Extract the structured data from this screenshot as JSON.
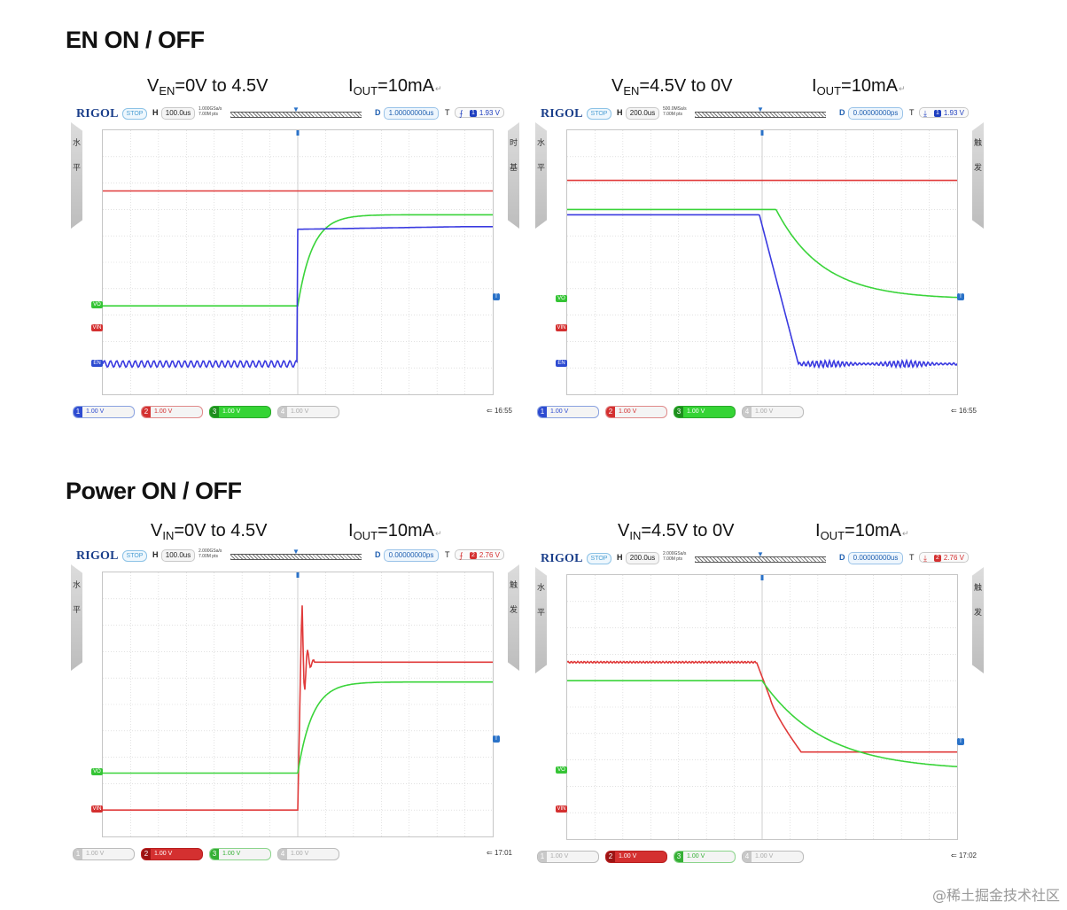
{
  "sections": [
    {
      "title": "EN ON / OFF"
    },
    {
      "title": "Power ON / OFF"
    }
  ],
  "panels": [
    {
      "caption_v": {
        "main": "V",
        "sub": "EN",
        "rest": "=0V to 4.5V"
      },
      "caption_i": {
        "main": "I",
        "sub": "OUT",
        "rest": "=10mA"
      },
      "brand": "RIGOL",
      "run_state": "STOP",
      "h_label": "H",
      "h_scale": "100.0us",
      "sample_rate": "1.000GSa/s",
      "mem_depth": "7.00M pts",
      "d_label": "D",
      "delay": "1.00000000us",
      "t_label": "T",
      "trig_edge": "rising",
      "trig_channel": "1",
      "trig_level": "1.93 V",
      "side_left": [
        "水",
        "平"
      ],
      "side_right": [
        "时",
        "基"
      ],
      "channels": [
        {
          "num": "1",
          "scale": "1.00 V",
          "state": "on"
        },
        {
          "num": "2",
          "scale": "1.00 V",
          "state": "on"
        },
        {
          "num": "3",
          "scale": "1.00 V",
          "state": "active"
        },
        {
          "num": "4",
          "scale": "1.00 V",
          "state": "off"
        }
      ],
      "clock": "16:55",
      "markers": [
        {
          "label": "VO",
          "color": "#35c435"
        },
        {
          "label": "VIN",
          "color": "#d43030"
        },
        {
          "label": "EN",
          "color": "#2d4bd1"
        }
      ],
      "chart_data": {
        "type": "line",
        "x_divisions": 14,
        "y_divisions": 10,
        "transition_at_div": 7,
        "series": [
          {
            "color": "#e03a3a",
            "shape": "flat",
            "level_div": 7.7
          },
          {
            "color": "#3ad43a",
            "shape": "rise",
            "from_div": 3.35,
            "to_div": 6.8
          },
          {
            "color": "#3a3ae0",
            "shape": "en_rise",
            "from_div": 1.15,
            "to_div": 6.35
          }
        ]
      }
    },
    {
      "caption_v": {
        "main": "V",
        "sub": "EN",
        "rest": "=4.5V to 0V"
      },
      "caption_i": {
        "main": "I",
        "sub": "OUT",
        "rest": "=10mA"
      },
      "brand": "RIGOL",
      "run_state": "STOP",
      "h_label": "H",
      "h_scale": "200.0us",
      "sample_rate": "500.0MSa/s",
      "mem_depth": "7.00M pts",
      "d_label": "D",
      "delay": "0.00000000ps",
      "t_label": "T",
      "trig_edge": "falling",
      "trig_channel": "1",
      "trig_level": "1.93 V",
      "side_left": [
        "水",
        "平"
      ],
      "side_right": [
        "触",
        "发"
      ],
      "channels": [
        {
          "num": "1",
          "scale": "1.00 V",
          "state": "on"
        },
        {
          "num": "2",
          "scale": "1.00 V",
          "state": "on"
        },
        {
          "num": "3",
          "scale": "1.00 V",
          "state": "active"
        },
        {
          "num": "4",
          "scale": "1.00 V",
          "state": "off"
        }
      ],
      "clock": "16:55",
      "markers": [
        {
          "label": "VO",
          "color": "#35c435"
        },
        {
          "label": "VIN",
          "color": "#d43030"
        },
        {
          "label": "EN",
          "color": "#2d4bd1"
        }
      ],
      "chart_data": {
        "type": "line",
        "x_divisions": 14,
        "y_divisions": 10,
        "transition_at_div": 7,
        "series": [
          {
            "color": "#e03a3a",
            "shape": "flat",
            "level_div": 8.1
          },
          {
            "color": "#3ad43a",
            "shape": "decay",
            "from_div": 7.0,
            "to_div": 3.6
          },
          {
            "color": "#3a3ae0",
            "shape": "en_fall",
            "from_div": 6.8,
            "to_div": 1.15
          }
        ]
      }
    },
    {
      "caption_v": {
        "main": "V",
        "sub": "IN",
        "rest": "=0V to 4.5V"
      },
      "caption_i": {
        "main": "I",
        "sub": "OUT",
        "rest": "=10mA"
      },
      "brand": "RIGOL",
      "run_state": "STOP",
      "h_label": "H",
      "h_scale": "100.0us",
      "sample_rate": "2.000GSa/s",
      "mem_depth": "7.00M pts",
      "d_label": "D",
      "delay": "0.00000000ps",
      "t_label": "T",
      "trig_edge": "rising",
      "trig_channel": "2",
      "trig_level": "2.76 V",
      "side_left": [
        "水",
        "平"
      ],
      "side_right": [
        "触",
        "发"
      ],
      "channels": [
        {
          "num": "1",
          "scale": "1.00 V",
          "state": "off"
        },
        {
          "num": "2",
          "scale": "1.00 V",
          "state": "active"
        },
        {
          "num": "3",
          "scale": "1.00 V",
          "state": "on"
        },
        {
          "num": "4",
          "scale": "1.00 V",
          "state": "off"
        }
      ],
      "clock": "17:01",
      "markers": [
        {
          "label": "VO",
          "color": "#35c435"
        },
        {
          "label": "VIN",
          "color": "#d43030"
        }
      ],
      "chart_data": {
        "type": "line",
        "x_divisions": 14,
        "y_divisions": 10,
        "transition_at_div": 7,
        "series": [
          {
            "color": "#e03a3a",
            "shape": "vin_rise",
            "from_div": 1.0,
            "to_div": 6.6
          },
          {
            "color": "#3ad43a",
            "shape": "rise",
            "from_div": 2.4,
            "to_div": 5.85
          }
        ]
      }
    },
    {
      "caption_v": {
        "main": "V",
        "sub": "IN",
        "rest": "=4.5V to 0V"
      },
      "caption_i": {
        "main": "I",
        "sub": "OUT",
        "rest": "=10mA"
      },
      "brand": "RIGOL",
      "run_state": "STOP",
      "h_label": "H",
      "h_scale": "200.0us",
      "sample_rate": "2.000GSa/s",
      "mem_depth": "7.00M pts",
      "d_label": "D",
      "delay": "0.00000000us",
      "t_label": "T",
      "trig_edge": "falling",
      "trig_channel": "2",
      "trig_level": "2.76 V",
      "side_left": [
        "水",
        "平"
      ],
      "side_right": [
        "触",
        "发"
      ],
      "channels": [
        {
          "num": "1",
          "scale": "1.00 V",
          "state": "off"
        },
        {
          "num": "2",
          "scale": "1.00 V",
          "state": "active"
        },
        {
          "num": "3",
          "scale": "1.00 V",
          "state": "on"
        },
        {
          "num": "4",
          "scale": "1.00 V",
          "state": "off"
        }
      ],
      "clock": "17:02",
      "markers": [
        {
          "label": "VO",
          "color": "#35c435"
        },
        {
          "label": "VIN",
          "color": "#d43030"
        }
      ],
      "chart_data": {
        "type": "line",
        "x_divisions": 14,
        "y_divisions": 10,
        "transition_at_div": 7,
        "series": [
          {
            "color": "#e03a3a",
            "shape": "vin_fall",
            "from_div": 6.7,
            "to_div": 3.3
          },
          {
            "color": "#3ad43a",
            "shape": "decay2",
            "from_div": 6.0,
            "to_div": 2.6
          }
        ]
      }
    }
  ],
  "watermark": "@稀土掘金技术社区"
}
